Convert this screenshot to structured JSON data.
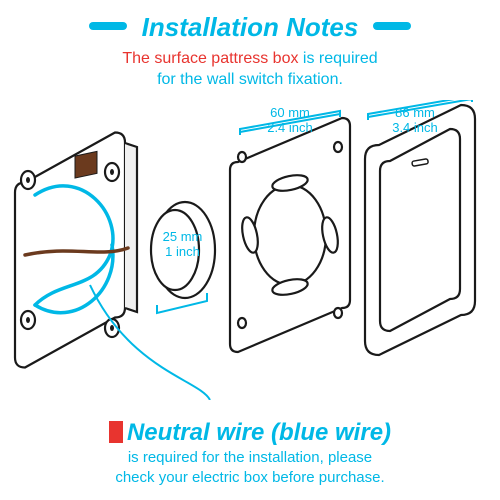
{
  "colors": {
    "accent": "#00b8e6",
    "red": "#e8342f",
    "brown": "#6b3a1e",
    "outline": "#1a1a1a",
    "white": "#ffffff"
  },
  "header": {
    "title": "Installation Notes",
    "sub_hl": "The surface pattress box",
    "sub_rest1": " is required",
    "sub_rest2": "for the wall switch fixation."
  },
  "dims": {
    "d25": {
      "mm": "25 mm",
      "in": "1 inch"
    },
    "d60": {
      "mm": "60 mm",
      "in": "2.4 inch"
    },
    "d86": {
      "mm": "86 mm",
      "in": "3.4 inch"
    }
  },
  "footer": {
    "title": "Neutral wire (blue wire)",
    "line1": "is required for the installation, please",
    "line2": "check your electric box before purchase."
  },
  "diagram": {
    "stroke_main": 2.2,
    "stroke_wire": 3.5
  }
}
